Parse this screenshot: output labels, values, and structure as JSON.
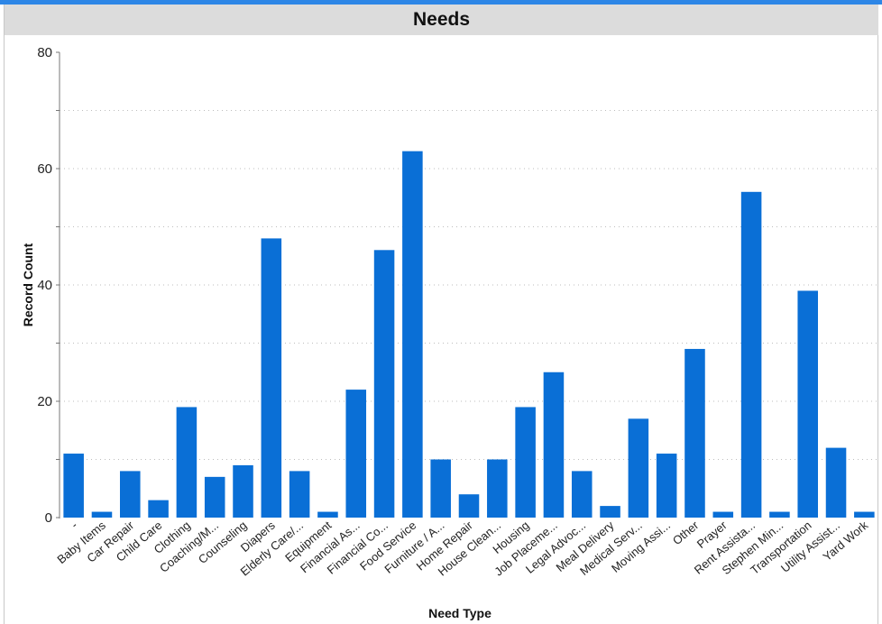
{
  "title": "Needs",
  "colors": {
    "bar": "#0a6fd6",
    "accent": "#2d86e6",
    "title_bg": "#dcdcdc"
  },
  "chart_data": {
    "type": "bar",
    "title": "Needs",
    "xlabel": "Need Type",
    "ylabel": "Record Count",
    "ylim": [
      0,
      80
    ],
    "yticks": [
      0,
      20,
      40,
      60,
      80
    ],
    "grid": true,
    "categories": [
      "-",
      "Baby Items",
      "Car Repair",
      "Child Care",
      "Clothing",
      "Coaching/M...",
      "Counseling",
      "Diapers",
      "Elderly Care/...",
      "Equipment",
      "Financial As...",
      "Financial Co...",
      "Food Service",
      "Furniture / A...",
      "Home Repair",
      "House Clean...",
      "Housing",
      "Job Placeme...",
      "Legal Advoc...",
      "Meal Delivery",
      "Medical Serv...",
      "Moving Assi...",
      "Other",
      "Prayer",
      "Rent Assista...",
      "Stephen Min...",
      "Transportation",
      "Utility Assist...",
      "Yard Work"
    ],
    "values": [
      11,
      1,
      8,
      3,
      19,
      7,
      9,
      48,
      8,
      1,
      22,
      46,
      63,
      10,
      4,
      10,
      19,
      25,
      8,
      2,
      17,
      11,
      29,
      1,
      56,
      1,
      39,
      12,
      1
    ]
  }
}
